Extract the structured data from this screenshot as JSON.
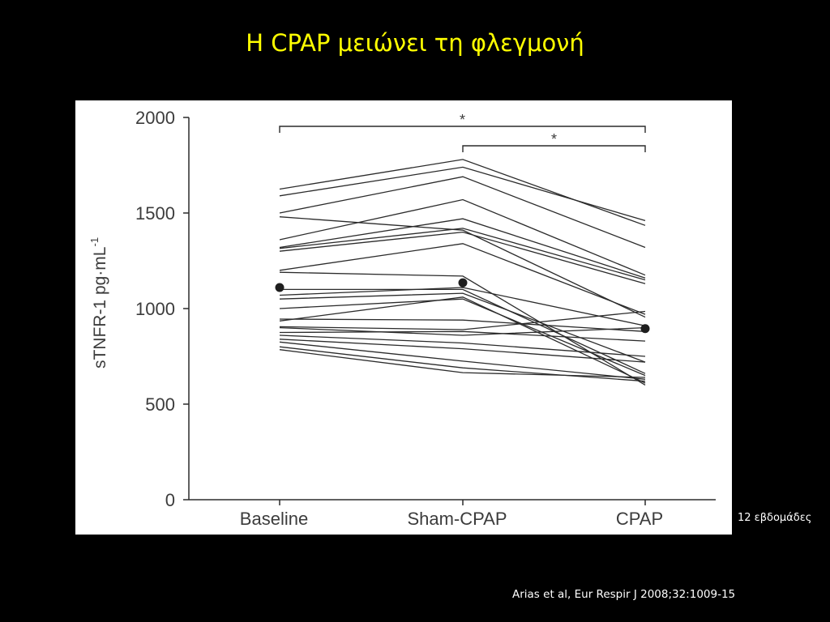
{
  "slide": {
    "title": "Η CPAP μειώνει τη φλεγμονή",
    "side_note": "12 εβδομάδες",
    "citation": "Arias et al, Eur Respir J 2008;32:1009-15"
  },
  "colors": {
    "background": "#000000",
    "title": "#ffff00",
    "panel": "#ffffff",
    "ink": "#2b2b2b"
  },
  "chart_data": {
    "type": "line",
    "categories": [
      "Baseline",
      "Sham-CPAP",
      "CPAP"
    ],
    "ylabel": "sTNFR-1 pg·mL",
    "ylabel_superscript": "-1",
    "ylim": [
      0,
      2000
    ],
    "yticks": [
      0,
      500,
      1000,
      1500,
      2000
    ],
    "grid": false,
    "significance": [
      {
        "from": "Baseline",
        "to": "CPAP",
        "label": "*"
      },
      {
        "from": "Sham-CPAP",
        "to": "CPAP",
        "label": "*"
      }
    ],
    "series": [
      {
        "values": [
          1625,
          1780,
          1435
        ]
      },
      {
        "values": [
          1590,
          1740,
          1460
        ]
      },
      {
        "values": [
          1500,
          1690,
          1320
        ]
      },
      {
        "values": [
          1480,
          1410,
          955
        ]
      },
      {
        "values": [
          1360,
          1570,
          1175
        ]
      },
      {
        "values": [
          1320,
          1470,
          1160
        ]
      },
      {
        "values": [
          1315,
          1420,
          1150
        ]
      },
      {
        "values": [
          1300,
          1400,
          1130
        ]
      },
      {
        "values": [
          1200,
          1340,
          970
        ]
      },
      {
        "values": [
          1190,
          1170,
          600
        ]
      },
      {
        "values": [
          1100,
          1100,
          660
        ]
      },
      {
        "values": [
          1070,
          1110,
          910
        ]
      },
      {
        "values": [
          1050,
          1080,
          720
        ]
      },
      {
        "values": [
          1000,
          1050,
          650
        ]
      },
      {
        "values": [
          945,
          940,
          880
        ]
      },
      {
        "values": [
          935,
          1060,
          610
        ]
      },
      {
        "values": [
          905,
          890,
          985
        ]
      },
      {
        "values": [
          900,
          860,
          900
        ]
      },
      {
        "values": [
          875,
          880,
          830
        ]
      },
      {
        "values": [
          860,
          820,
          750
        ]
      },
      {
        "values": [
          840,
          790,
          720
        ]
      },
      {
        "values": [
          825,
          725,
          630
        ]
      },
      {
        "values": [
          800,
          690,
          620
        ]
      },
      {
        "values": [
          785,
          665,
          640
        ]
      }
    ],
    "means": [
      1110,
      1135,
      895
    ]
  }
}
